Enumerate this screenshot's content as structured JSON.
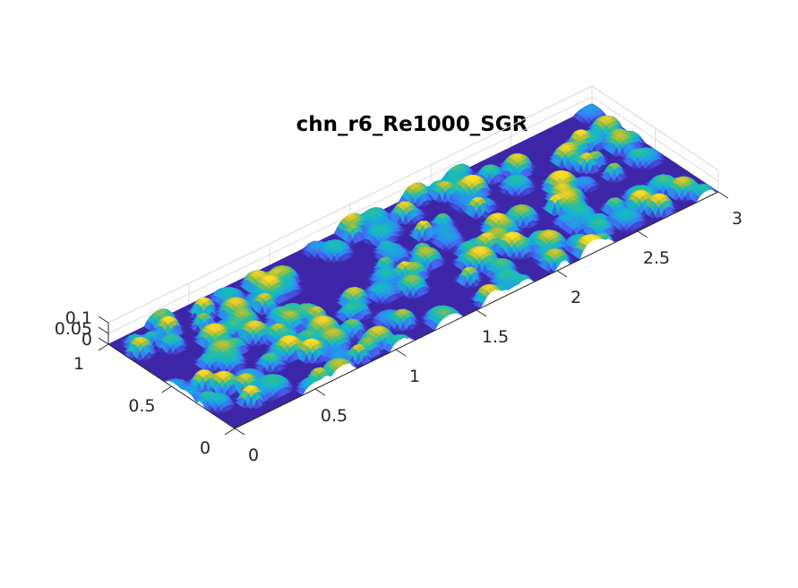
{
  "chart_data": {
    "type": "surface",
    "title": "chn_r6_Re1000_SGR",
    "xlabel": "",
    "ylabel": "",
    "zlabel": "",
    "xlim": [
      0,
      3
    ],
    "ylim": [
      0,
      1
    ],
    "zlim": [
      0,
      0.1
    ],
    "x_ticks": [
      0,
      0.5,
      1,
      1.5,
      2,
      2.5,
      3
    ],
    "x_tick_labels": [
      "0",
      "0.5",
      "1",
      "1.5",
      "2",
      "2.5",
      "3"
    ],
    "y_ticks": [
      0,
      0.5,
      1
    ],
    "y_tick_labels": [
      "0",
      "0.5",
      "1"
    ],
    "z_ticks": [
      0,
      0.05,
      0.1
    ],
    "z_tick_labels": [
      "0",
      "0.05",
      "0.1"
    ],
    "grid": true,
    "colormap": "parula",
    "colormap_stops": [
      "#3e26a8",
      "#4760f0",
      "#2c8ef0",
      "#15b3d0",
      "#2bc09a",
      "#a5be3a",
      "#f9d52a",
      "#f9fb15"
    ],
    "surface": {
      "description_of_roughness": "random array of overlapping ellipsoidal bumps",
      "z_min": 0,
      "z_max": 0.1
    }
  }
}
